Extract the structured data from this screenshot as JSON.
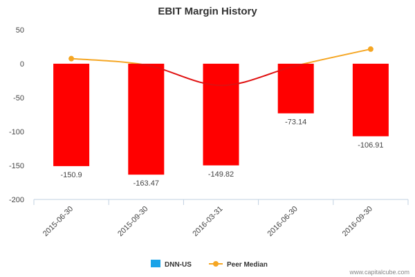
{
  "chart_data": {
    "type": "bar",
    "title": "EBIT Margin History",
    "categories": [
      "2015-06-30",
      "2015-09-30",
      "2016-03-31",
      "2016-06-30",
      "2016-09-30"
    ],
    "series": [
      {
        "name": "DNN-US",
        "type": "bar",
        "values": [
          -150.9,
          -163.47,
          -149.82,
          -73.14,
          -106.91
        ],
        "labels": [
          "-150.9",
          "-163.47",
          "-149.82",
          "-73.14",
          "-106.91"
        ],
        "color": "#ff0000",
        "legend_color": "#1aa3e8"
      },
      {
        "name": "Peer Median",
        "type": "line",
        "values": [
          7.5,
          -2,
          -32,
          -3,
          21.5
        ],
        "color": "#f5a623",
        "below_zero_color": "#e01010"
      }
    ],
    "ylim": [
      -200,
      50
    ],
    "yticks": [
      50,
      0,
      -50,
      -100,
      -150,
      -200
    ],
    "xlabel": "",
    "ylabel": "",
    "legend_position": "bottom",
    "gridlines": false
  },
  "watermark": "www.capitalcube.com"
}
